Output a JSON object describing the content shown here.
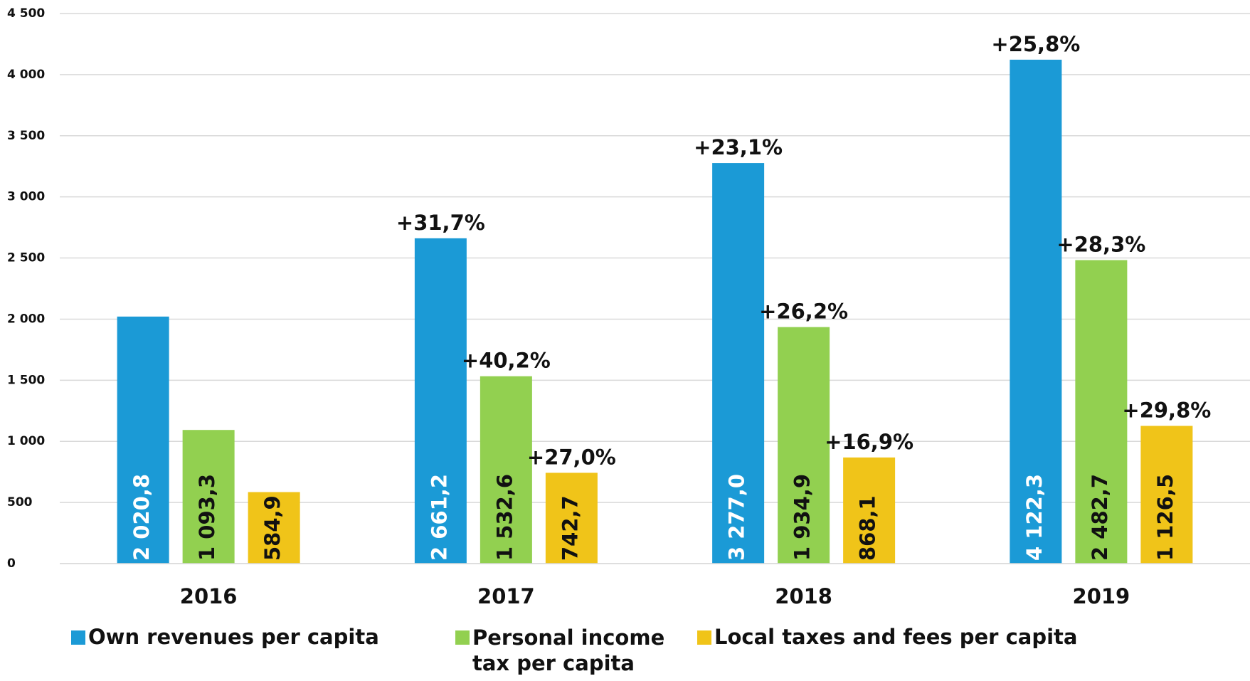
{
  "chart_data": {
    "type": "bar",
    "categories": [
      "2016",
      "2017",
      "2018",
      "2019"
    ],
    "series": [
      {
        "name": "Own revenues per capita",
        "color": "#1b9ad6",
        "values": [
          2020.8,
          2661.2,
          3277.0,
          4122.3
        ],
        "value_labels": [
          "2 020,8",
          "2 661,2",
          "3 277,0",
          "4 122,3"
        ],
        "growth_labels": [
          null,
          "+31,7%",
          "+23,1%",
          "+25,8%"
        ]
      },
      {
        "name": "Personal income tax per capita",
        "color": "#92d050",
        "values": [
          1093.3,
          1532.6,
          1934.9,
          2482.7
        ],
        "value_labels": [
          "1 093,3",
          "1 532,6",
          "1 934,9",
          "2 482,7"
        ],
        "growth_labels": [
          null,
          "+40,2%",
          "+26,2%",
          "+28,3%"
        ]
      },
      {
        "name": "Local taxes and fees per capita",
        "color": "#f0c419",
        "values": [
          584.9,
          742.7,
          868.1,
          1126.5
        ],
        "value_labels": [
          "584,9",
          "742,7",
          "868,1",
          "1 126,5"
        ],
        "growth_labels": [
          null,
          "+27,0%",
          "+16,9%",
          "+29,8%"
        ]
      }
    ],
    "ylim": [
      0,
      4500
    ],
    "yticks": [
      0,
      500,
      {
        "value": 1000,
        "label": "1 000"
      },
      {
        "value": 1500,
        "label": "1 500"
      },
      {
        "value": 2000,
        "label": "2 000"
      },
      {
        "value": 2500,
        "label": "2 500"
      },
      {
        "value": 3000,
        "label": "3 000"
      },
      {
        "value": 3500,
        "label": "3 500"
      },
      {
        "value": 4000,
        "label": "4 000"
      },
      {
        "value": 4500,
        "label": "4 500"
      }
    ],
    "grid": true
  }
}
